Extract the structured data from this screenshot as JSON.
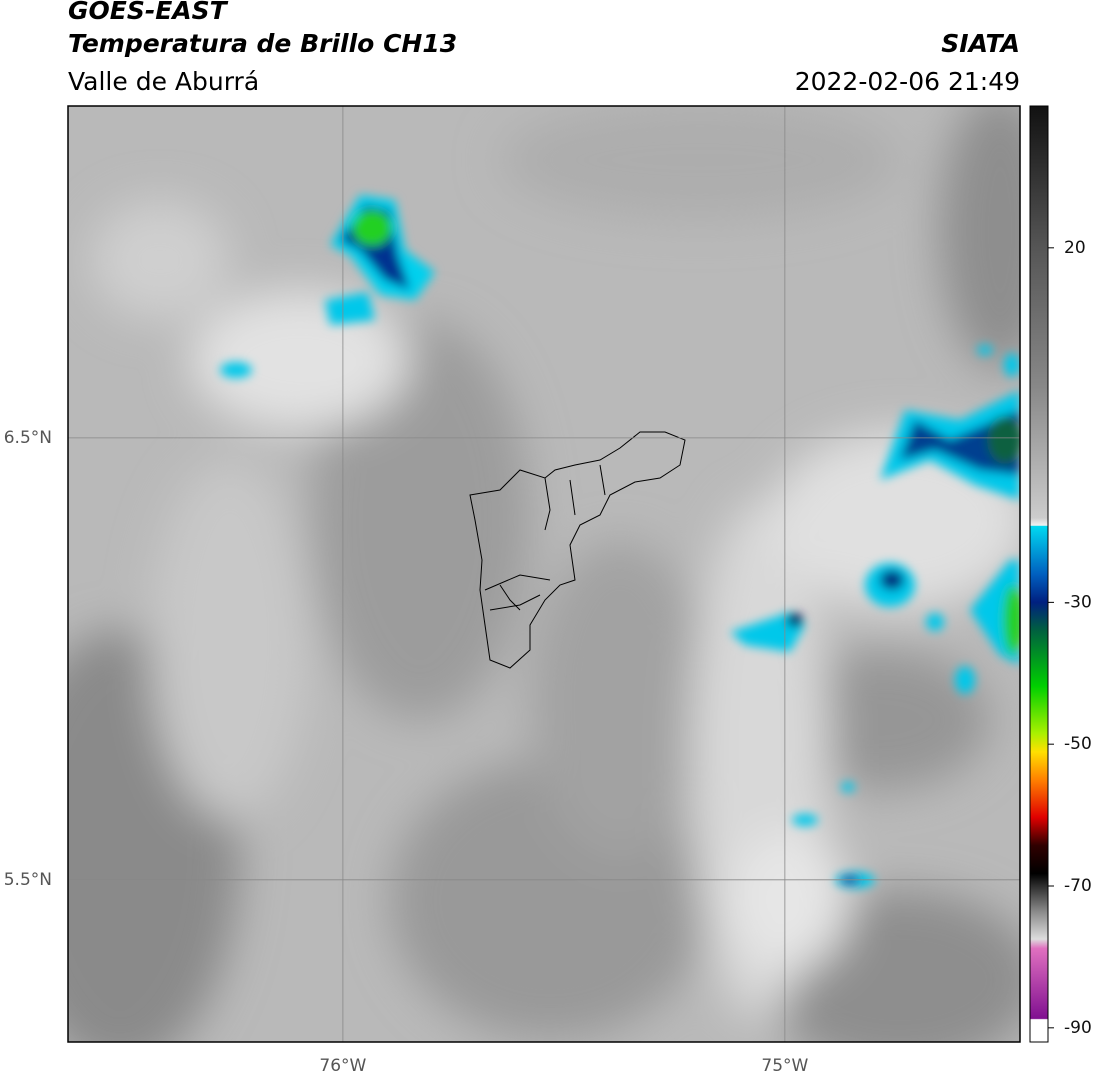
{
  "chart_data": {
    "type": "map",
    "title": "GOES-EAST",
    "subtitle": "Temperatura de Brillo CH13",
    "region": "Valle de Aburrá",
    "source": "SIATA",
    "datetime": "2022-02-06 21:49",
    "xlim": [
      -76.622,
      -74.468
    ],
    "ylim": [
      5.133,
      7.251
    ],
    "xticks": [
      {
        "value": -76,
        "label": "76°W"
      },
      {
        "value": -75,
        "label": "75°W"
      }
    ],
    "yticks": [
      {
        "value": 6.5,
        "label": "6.5°N"
      },
      {
        "value": 5.5,
        "label": "5.5°N"
      }
    ],
    "grid": true,
    "colorbar": {
      "lim": [
        -92,
        40
      ],
      "ticks": [
        20,
        -30,
        -50,
        -70,
        -90
      ]
    }
  }
}
